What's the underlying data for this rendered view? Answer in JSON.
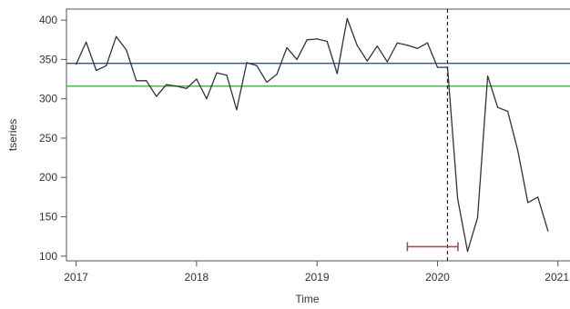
{
  "chart_data": {
    "type": "line",
    "title": "",
    "xlabel": "Time",
    "ylabel": "tseries",
    "xlim": [
      2016.92,
      2021.1
    ],
    "ylim": [
      94,
      414
    ],
    "x_ticks": [
      2017,
      2018,
      2019,
      2020,
      2021
    ],
    "x_tick_labels": [
      "2017",
      "2018",
      "2019",
      "2020",
      "2021"
    ],
    "y_ticks": [
      100,
      150,
      200,
      250,
      300,
      350,
      400
    ],
    "y_tick_labels": [
      "100",
      "150",
      "200",
      "250",
      "300",
      "350",
      "400"
    ],
    "grid": false,
    "legend": "none",
    "series": [
      {
        "color": "#333333",
        "x": [
          2017.0,
          2017.083,
          2017.167,
          2017.25,
          2017.333,
          2017.417,
          2017.5,
          2017.583,
          2017.667,
          2017.75,
          2017.833,
          2017.917,
          2018.0,
          2018.083,
          2018.167,
          2018.25,
          2018.333,
          2018.417,
          2018.5,
          2018.583,
          2018.667,
          2018.75,
          2018.833,
          2018.917,
          2019.0,
          2019.083,
          2019.167,
          2019.25,
          2019.333,
          2019.417,
          2019.5,
          2019.583,
          2019.667,
          2019.75,
          2019.833,
          2019.917,
          2020.0,
          2020.083,
          2020.167,
          2020.25,
          2020.333,
          2020.417,
          2020.5,
          2020.583,
          2020.667,
          2020.75,
          2020.833,
          2020.917
        ],
        "values": [
          344,
          372,
          336,
          342,
          379,
          362,
          323,
          323,
          303,
          318,
          316,
          313,
          325,
          300,
          333,
          330,
          286,
          346,
          342,
          321,
          331,
          365,
          350,
          375,
          376,
          373,
          332,
          402,
          368,
          348,
          367,
          347,
          371,
          368,
          364,
          371,
          340,
          340,
          173,
          106,
          149,
          329,
          289,
          284,
          234,
          168,
          175,
          132
        ]
      }
    ],
    "reference_lines": [
      {
        "orientation": "horizontal",
        "value": 345,
        "color": "#3a49b0"
      },
      {
        "orientation": "horizontal",
        "value": 316,
        "color": "#4aa84a"
      },
      {
        "orientation": "vertical",
        "value": 2020.083,
        "color": "#222222",
        "style": "dashed"
      }
    ],
    "interval": {
      "from": 2019.75,
      "to": 2020.17,
      "y": 112,
      "color": "#b24a4a"
    }
  }
}
